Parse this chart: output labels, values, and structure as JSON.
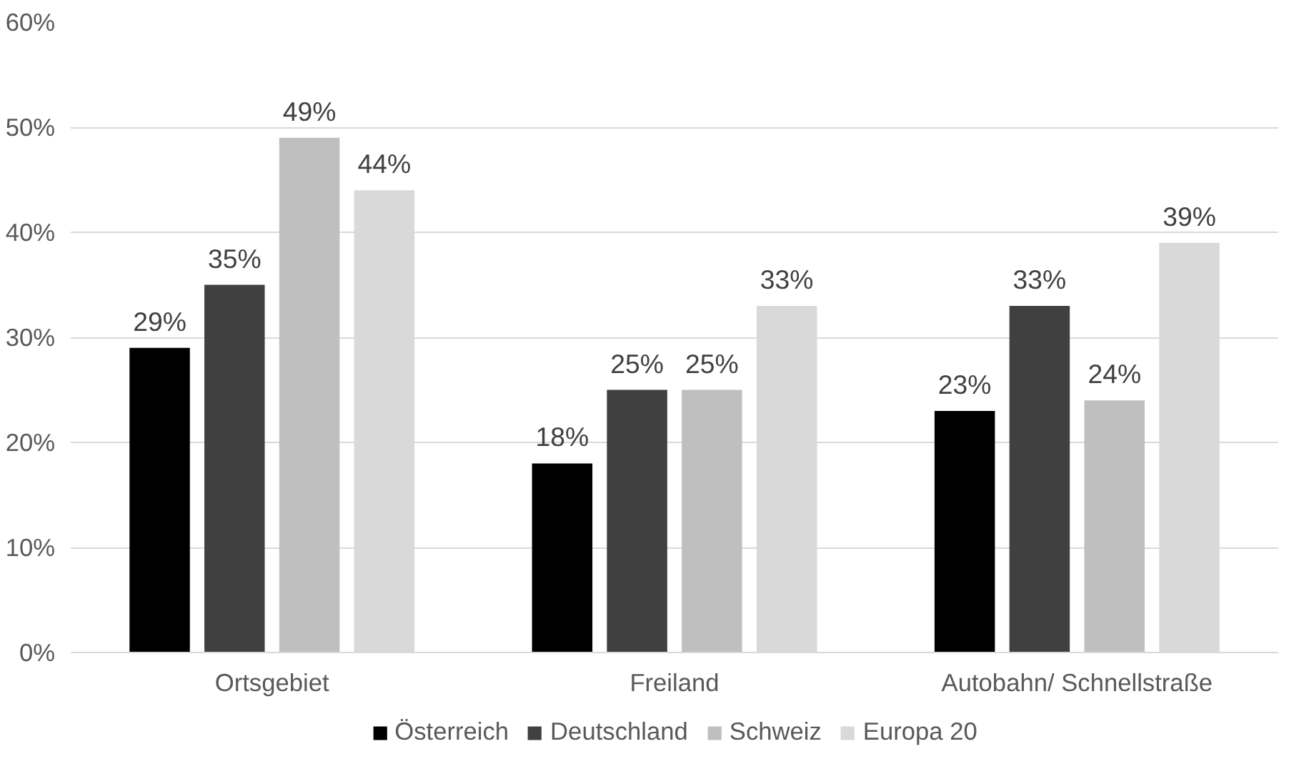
{
  "chart_data": {
    "type": "bar",
    "categories": [
      "Ortsgebiet",
      "Freiland",
      "Autobahn/ Schnellstraße"
    ],
    "series": [
      {
        "name": "Österreich",
        "color": "#000000",
        "values": [
          29,
          18,
          23
        ],
        "value_labels": [
          "29%",
          "18%",
          "23%"
        ]
      },
      {
        "name": "Deutschland",
        "color": "#404040",
        "values": [
          35,
          25,
          33
        ],
        "value_labels": [
          "35%",
          "25%",
          "33%"
        ]
      },
      {
        "name": "Schweiz",
        "color": "#bfbfbf",
        "values": [
          49,
          25,
          24
        ],
        "value_labels": [
          "49%",
          "25%",
          "24%"
        ]
      },
      {
        "name": "Europa 20",
        "color": "#d9d9d9",
        "values": [
          44,
          33,
          39
        ],
        "value_labels": [
          "44%",
          "33%",
          "39%"
        ]
      }
    ],
    "ylim": [
      0,
      60
    ],
    "yticks": [
      {
        "value": 0,
        "label": "0%"
      },
      {
        "value": 10,
        "label": "10%"
      },
      {
        "value": 20,
        "label": "20%"
      },
      {
        "value": 30,
        "label": "30%"
      },
      {
        "value": 40,
        "label": "40%"
      },
      {
        "value": 50,
        "label": "50%"
      },
      {
        "value": 60,
        "label": "60%"
      }
    ],
    "grid": "y",
    "legend": "bottom"
  }
}
